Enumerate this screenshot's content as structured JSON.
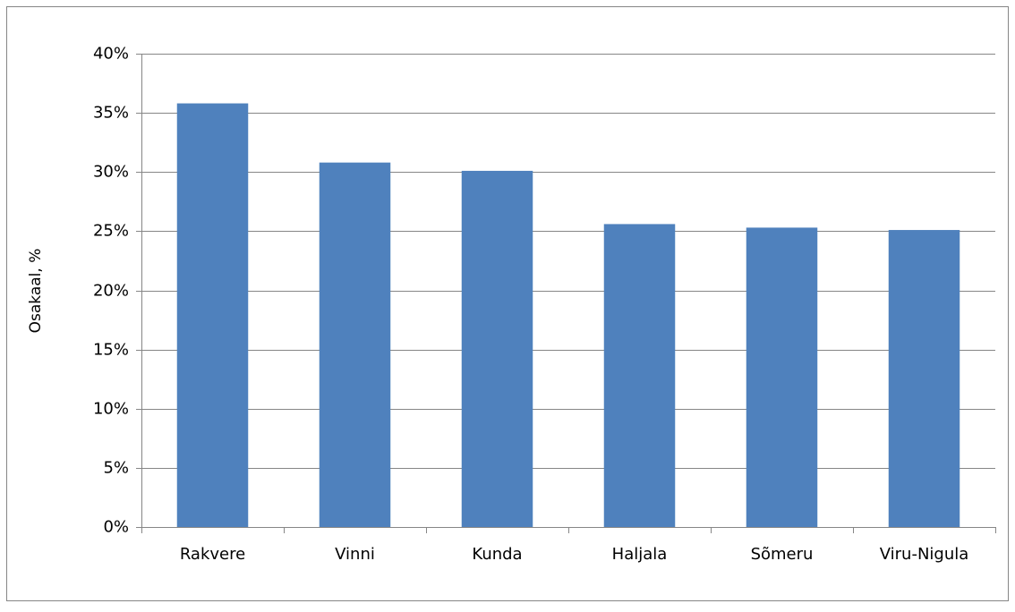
{
  "chart_data": {
    "type": "bar",
    "y_label": "Osakaal, %",
    "categories": [
      "Rakvere",
      "Vinni",
      "Kunda",
      "Haljala",
      "Sõmeru",
      "Viru-Nigula"
    ],
    "values": [
      35.8,
      30.8,
      30.1,
      25.6,
      25.3,
      25.1
    ],
    "color": "#4f81bd",
    "ylim": [
      0,
      40
    ],
    "yticks": [
      {
        "value": 0,
        "label": "0%"
      },
      {
        "value": 5,
        "label": "5%"
      },
      {
        "value": 10,
        "label": "10%"
      },
      {
        "value": 15,
        "label": "15%"
      },
      {
        "value": 20,
        "label": "20%"
      },
      {
        "value": 25,
        "label": "25%"
      },
      {
        "value": 30,
        "label": "30%"
      },
      {
        "value": 35,
        "label": "35%"
      },
      {
        "value": 40,
        "label": "40%"
      }
    ],
    "grid": true
  }
}
